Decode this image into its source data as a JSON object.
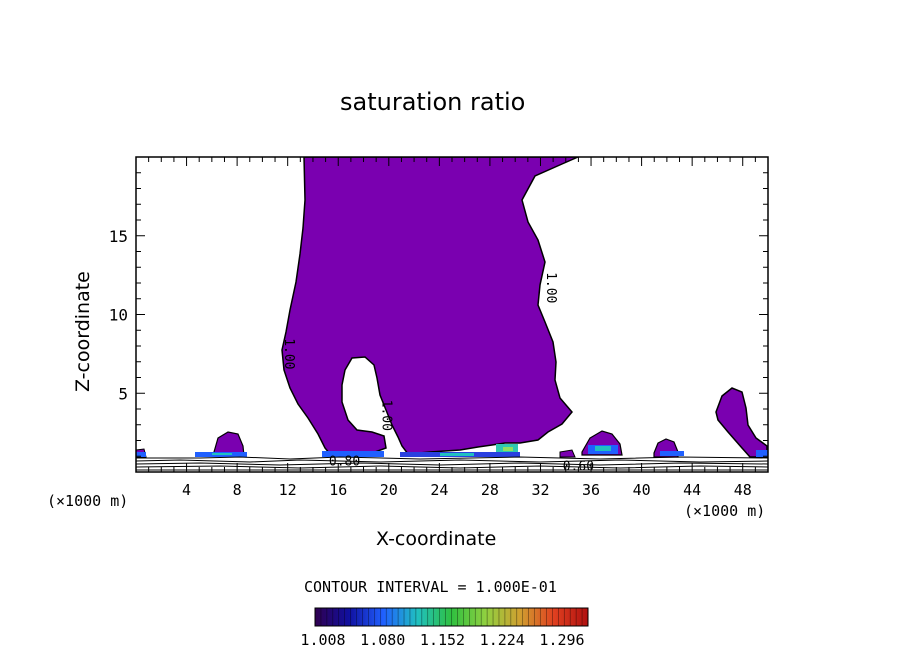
{
  "chart_data": {
    "type": "contour",
    "title": "saturation ratio",
    "xlabel": "X-coordinate",
    "ylabel": "Z-coordinate",
    "x_unit": "(×1000 m)",
    "xlim": [
      0,
      50
    ],
    "ylim": [
      0,
      20
    ],
    "x_ticks": [
      4,
      8,
      12,
      16,
      20,
      24,
      28,
      32,
      36,
      40,
      44,
      48
    ],
    "y_ticks": [
      5,
      10,
      15
    ],
    "fill_color": "#7a00b0",
    "contour_labels": [
      {
        "text": "1.00",
        "x": 11.8,
        "z": 7.5
      },
      {
        "text": "1.00",
        "x": 19.5,
        "z": 3.6
      },
      {
        "text": "1.00",
        "x": 32.5,
        "z": 11.7
      },
      {
        "text": "0.80",
        "x": 16.5,
        "z": 0.4
      },
      {
        "text": "0.60",
        "x": 35.0,
        "z": 0.1
      }
    ],
    "contour_interval": "CONTOUR INTERVAL = 1.000E-01",
    "colorbar": {
      "labels": [
        "1.008",
        "1.080",
        "1.152",
        "1.224",
        "1.296"
      ],
      "colors": [
        "#300050",
        "#1010a0",
        "#2060ff",
        "#20c0c0",
        "#30c040",
        "#90d040",
        "#d0a030",
        "#e04020",
        "#b01010"
      ]
    }
  }
}
